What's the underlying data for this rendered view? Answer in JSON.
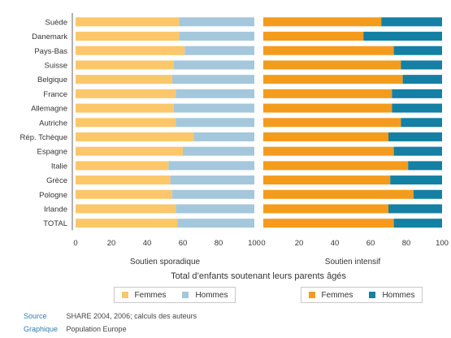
{
  "chart_data": {
    "type": "bar",
    "stacked": true,
    "orientation": "horizontal",
    "xlabel": "Total d’enfants soutenant leurs parents âgés",
    "xlim": [
      0,
      100
    ],
    "xticks": [
      0,
      20,
      40,
      60,
      80,
      100
    ],
    "categories": [
      "Suède",
      "Danemark",
      "Pays-Bas",
      "Suisse",
      "Belgique",
      "France",
      "Allemagne",
      "Autriche",
      "Rép. Tchèque",
      "Espagne",
      "Italie",
      "Grèce",
      "Pologne",
      "Irlande",
      "TOTAL"
    ],
    "panels": [
      {
        "title": "Soutien sporadique",
        "series": [
          {
            "name": "Femmes",
            "color": "#fcc768",
            "values": [
              58,
              58,
              61,
              55,
              54,
              56,
              55,
              56,
              66,
              60,
              52,
              53,
              54,
              56,
              57
            ]
          },
          {
            "name": "Hommes",
            "color": "#a4c7dc",
            "values": [
              42,
              42,
              39,
              45,
              46,
              44,
              45,
              44,
              34,
              40,
              48,
              47,
              46,
              44,
              43
            ]
          }
        ]
      },
      {
        "title": "Soutien intensif",
        "series": [
          {
            "name": "Femmes",
            "color": "#f59b1b",
            "values": [
              66,
              56,
              73,
              77,
              78,
              72,
              72,
              77,
              70,
              73,
              81,
              71,
              84,
              70,
              73
            ]
          },
          {
            "name": "Hommes",
            "color": "#1380a4",
            "values": [
              34,
              44,
              27,
              23,
              22,
              28,
              28,
              23,
              30,
              27,
              19,
              29,
              16,
              30,
              27
            ]
          }
        ]
      }
    ]
  },
  "footer": {
    "source_label": "Source",
    "source_text": "SHARE 2004, 2006; calculs des auteurs",
    "graphique_label": "Graphique",
    "graphique_text": "Population Europe"
  }
}
